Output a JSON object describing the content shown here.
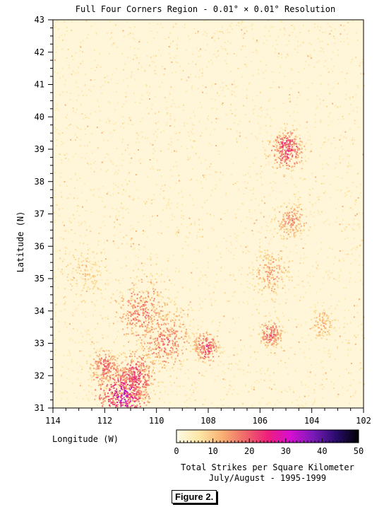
{
  "chart_data": {
    "type": "heatmap",
    "title": "Full Four Corners Region - 0.01° × 0.01° Resolution",
    "xlabel": "Longitude (W)",
    "ylabel": "Latitude (N)",
    "x_range": [
      114,
      102
    ],
    "y_range": [
      31,
      43
    ],
    "x_ticks": [
      "114",
      "112",
      "110",
      "108",
      "106",
      "104",
      "102"
    ],
    "y_ticks": [
      "31",
      "32",
      "33",
      "34",
      "35",
      "36",
      "37",
      "38",
      "39",
      "40",
      "41",
      "42",
      "43"
    ],
    "colorbar": {
      "range": [
        0,
        50
      ],
      "ticks": [
        "0",
        "10",
        "20",
        "30",
        "40",
        "50"
      ],
      "label_line1": "Total Strikes per Square Kilometer",
      "label_line2": "July/August - 1995-1999",
      "colors": [
        "#fffbe8",
        "#fde7a6",
        "#f8b173",
        "#ef6a6a",
        "#ee1f7a",
        "#d60fd0",
        "#7a1ab8",
        "#2a0c6e",
        "#000000"
      ]
    },
    "hotspots": [
      {
        "lon": 111.3,
        "lat": 31.4,
        "intensity": 0.95,
        "spread": 0.8
      },
      {
        "lon": 110.8,
        "lat": 32.0,
        "intensity": 0.7,
        "spread": 0.6
      },
      {
        "lon": 112.0,
        "lat": 32.3,
        "intensity": 0.55,
        "spread": 0.5
      },
      {
        "lon": 109.7,
        "lat": 33.1,
        "intensity": 0.55,
        "spread": 0.8
      },
      {
        "lon": 108.1,
        "lat": 32.9,
        "intensity": 0.65,
        "spread": 0.4
      },
      {
        "lon": 110.6,
        "lat": 34.0,
        "intensity": 0.5,
        "spread": 0.9
      },
      {
        "lon": 105.0,
        "lat": 39.0,
        "intensity": 0.75,
        "spread": 0.5
      },
      {
        "lon": 105.6,
        "lat": 33.3,
        "intensity": 0.6,
        "spread": 0.35
      },
      {
        "lon": 104.8,
        "lat": 36.8,
        "intensity": 0.45,
        "spread": 0.5
      },
      {
        "lon": 105.6,
        "lat": 35.2,
        "intensity": 0.4,
        "spread": 0.6
      },
      {
        "lon": 103.6,
        "lat": 33.6,
        "intensity": 0.35,
        "spread": 0.4
      },
      {
        "lon": 112.8,
        "lat": 35.2,
        "intensity": 0.25,
        "spread": 0.7
      }
    ]
  },
  "figure_label": "Figure 2."
}
